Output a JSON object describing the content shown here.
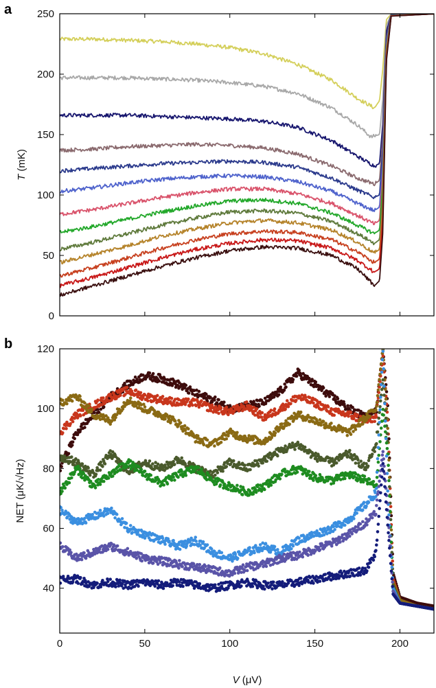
{
  "chart_data": [
    {
      "panel": "a",
      "type": "line",
      "xlabel": "",
      "ylabel_var": "T",
      "ylabel_unit": " (mK)",
      "xlim": [
        0,
        220
      ],
      "ylim": [
        0,
        250
      ],
      "xticks": [
        0,
        50,
        100,
        150,
        200
      ],
      "yticks": [
        0,
        50,
        100,
        150,
        200,
        250
      ],
      "xtick_labels": [
        "",
        "",
        "",
        "",
        ""
      ],
      "ytick_labels": [
        "0",
        "50",
        "100",
        "150",
        "200",
        "250"
      ],
      "grid": false,
      "series": [
        {
          "color": "#d4cf5a",
          "x": [
            0,
            20,
            40,
            60,
            80,
            100,
            120,
            140,
            160,
            175,
            185,
            188,
            190,
            192,
            195
          ],
          "y": [
            229,
            229,
            228,
            227,
            225,
            222,
            217,
            208,
            195,
            180,
            172,
            178,
            205,
            245,
            250
          ]
        },
        {
          "color": "#a8a8a8",
          "x": [
            0,
            20,
            40,
            60,
            80,
            100,
            120,
            140,
            160,
            175,
            183,
            188,
            190,
            192,
            195
          ],
          "y": [
            197,
            197,
            197,
            196,
            195,
            193,
            190,
            184,
            172,
            158,
            148,
            150,
            180,
            240,
            250
          ]
        },
        {
          "color": "#17166e",
          "x": [
            0,
            20,
            40,
            60,
            80,
            100,
            120,
            140,
            160,
            175,
            185,
            188,
            190,
            192,
            195
          ],
          "y": [
            166,
            166,
            166,
            165,
            164,
            163,
            161,
            156,
            145,
            132,
            124,
            126,
            160,
            235,
            250
          ]
        },
        {
          "color": "#8a6a6e",
          "x": [
            0,
            20,
            40,
            60,
            80,
            100,
            120,
            140,
            160,
            175,
            185,
            188,
            190,
            192,
            195
          ],
          "y": [
            137,
            138,
            140,
            141,
            142,
            141,
            139,
            134,
            124,
            114,
            109,
            112,
            150,
            230,
            250
          ]
        },
        {
          "color": "#2b3a8c",
          "x": [
            0,
            20,
            40,
            60,
            80,
            100,
            120,
            140,
            160,
            175,
            185,
            188,
            190,
            192,
            195
          ],
          "y": [
            120,
            122,
            124,
            126,
            127,
            128,
            127,
            123,
            114,
            104,
            98,
            100,
            140,
            228,
            250
          ]
        },
        {
          "color": "#4f63cc",
          "x": [
            0,
            20,
            40,
            60,
            80,
            100,
            120,
            140,
            160,
            175,
            185,
            188,
            190,
            192,
            195
          ],
          "y": [
            103,
            106,
            110,
            113,
            115,
            116,
            115,
            111,
            103,
            93,
            87,
            90,
            130,
            225,
            250
          ]
        },
        {
          "color": "#d9536b",
          "x": [
            0,
            20,
            40,
            60,
            80,
            100,
            120,
            140,
            160,
            175,
            185,
            188,
            190,
            192,
            195
          ],
          "y": [
            84,
            88,
            93,
            98,
            102,
            105,
            105,
            101,
            93,
            83,
            76,
            79,
            120,
            222,
            250
          ]
        },
        {
          "color": "#22a82a",
          "x": [
            0,
            20,
            40,
            60,
            80,
            100,
            120,
            140,
            160,
            175,
            185,
            188,
            190,
            192,
            195
          ],
          "y": [
            69,
            74,
            80,
            86,
            91,
            95,
            96,
            93,
            85,
            75,
            68,
            71,
            110,
            220,
            250
          ]
        },
        {
          "color": "#5f7a3c",
          "x": [
            0,
            20,
            40,
            60,
            80,
            100,
            120,
            140,
            160,
            175,
            185,
            188,
            190,
            192,
            195
          ],
          "y": [
            55,
            61,
            68,
            75,
            81,
            86,
            87,
            85,
            78,
            68,
            60,
            63,
            100,
            218,
            250
          ]
        },
        {
          "color": "#b5832a",
          "x": [
            0,
            20,
            40,
            60,
            80,
            100,
            120,
            140,
            160,
            175,
            185,
            188,
            190,
            192,
            195
          ],
          "y": [
            44,
            51,
            58,
            66,
            72,
            77,
            79,
            77,
            71,
            61,
            52,
            55,
            92,
            216,
            250
          ]
        },
        {
          "color": "#c7401f",
          "x": [
            0,
            20,
            40,
            60,
            80,
            100,
            120,
            140,
            160,
            175,
            185,
            188,
            190,
            192,
            195
          ],
          "y": [
            33,
            40,
            48,
            56,
            63,
            68,
            70,
            69,
            63,
            53,
            44,
            47,
            85,
            214,
            250
          ]
        },
        {
          "color": "#c81818",
          "x": [
            0,
            20,
            40,
            60,
            80,
            100,
            120,
            140,
            160,
            175,
            185,
            188,
            190,
            192,
            195
          ],
          "y": [
            25,
            32,
            40,
            48,
            55,
            60,
            63,
            62,
            56,
            46,
            36,
            39,
            78,
            212,
            250
          ]
        },
        {
          "color": "#3a0f0f",
          "x": [
            0,
            20,
            40,
            60,
            80,
            100,
            120,
            140,
            160,
            175,
            185,
            188,
            190,
            192,
            195
          ],
          "y": [
            17,
            25,
            33,
            41,
            48,
            54,
            57,
            56,
            50,
            39,
            25,
            29,
            70,
            210,
            250
          ]
        }
      ]
    },
    {
      "panel": "b",
      "type": "scatter",
      "xlabel_var": "V",
      "xlabel_unit": " (μV)",
      "ylabel": "NET (μK/√Hz)",
      "xlim": [
        0,
        220
      ],
      "ylim": [
        25,
        120
      ],
      "xticks": [
        0,
        50,
        100,
        150,
        200
      ],
      "yticks": [
        40,
        60,
        80,
        100,
        120
      ],
      "xtick_labels": [
        "0",
        "50",
        "100",
        "150",
        "200"
      ],
      "ytick_labels": [
        "40",
        "60",
        "80",
        "100",
        "120"
      ],
      "grid": false,
      "series": [
        {
          "color": "#3d0c0c",
          "x": [
            0,
            10,
            20,
            30,
            40,
            50,
            60,
            70,
            80,
            90,
            100,
            110,
            120,
            130,
            140,
            150,
            160,
            170,
            180,
            186,
            190,
            193,
            196,
            200,
            210,
            220
          ],
          "y": [
            80,
            92,
            98,
            104,
            108,
            111,
            110,
            108,
            105,
            103,
            100,
            101,
            102,
            106,
            112,
            108,
            104,
            100,
            97,
            99,
            120,
            100,
            45,
            37,
            35,
            34
          ]
        },
        {
          "color": "#c8361c",
          "x": [
            0,
            10,
            20,
            30,
            40,
            50,
            60,
            70,
            80,
            90,
            100,
            110,
            120,
            130,
            140,
            150,
            160,
            170,
            180,
            186,
            190,
            193,
            196,
            200,
            210,
            220
          ],
          "y": [
            92,
            98,
            101,
            104,
            106,
            104,
            103,
            102,
            102,
            100,
            99,
            101,
            97,
            100,
            104,
            102,
            99,
            98,
            96,
            97,
            118,
            95,
            43,
            36,
            34,
            33
          ]
        },
        {
          "color": "#8a6a14",
          "x": [
            0,
            10,
            20,
            30,
            40,
            50,
            60,
            70,
            80,
            90,
            100,
            110,
            120,
            130,
            140,
            150,
            160,
            170,
            180,
            186,
            190,
            193,
            196,
            200,
            210,
            220
          ],
          "y": [
            102,
            104,
            98,
            96,
            103,
            100,
            98,
            95,
            90,
            88,
            92,
            90,
            89,
            94,
            98,
            96,
            94,
            92,
            97,
            100,
            120,
            92,
            42,
            36,
            34,
            33
          ]
        },
        {
          "color": "#4a5a2c",
          "x": [
            0,
            10,
            20,
            30,
            40,
            50,
            60,
            70,
            80,
            90,
            100,
            110,
            120,
            130,
            140,
            150,
            160,
            170,
            180,
            186,
            190,
            193,
            196,
            200,
            210,
            220
          ],
          "y": [
            84,
            82,
            78,
            85,
            79,
            82,
            80,
            83,
            80,
            78,
            82,
            80,
            83,
            86,
            88,
            84,
            82,
            85,
            80,
            88,
            110,
            88,
            41,
            35,
            34,
            33
          ]
        },
        {
          "color": "#1e8c20",
          "x": [
            0,
            10,
            20,
            30,
            40,
            50,
            60,
            70,
            80,
            90,
            100,
            110,
            120,
            130,
            140,
            150,
            160,
            170,
            180,
            186,
            190,
            193,
            196,
            200,
            210,
            220
          ],
          "y": [
            72,
            80,
            74,
            78,
            82,
            78,
            75,
            78,
            80,
            76,
            74,
            72,
            74,
            78,
            80,
            77,
            76,
            78,
            76,
            74,
            100,
            84,
            40,
            35,
            34,
            33
          ]
        },
        {
          "color": "#3b8fe0",
          "x": [
            0,
            10,
            20,
            30,
            40,
            50,
            60,
            70,
            80,
            90,
            100,
            110,
            120,
            130,
            140,
            150,
            160,
            170,
            180,
            186,
            190,
            193,
            196,
            200,
            210,
            220
          ],
          "y": [
            66,
            62,
            64,
            66,
            60,
            58,
            56,
            54,
            56,
            52,
            50,
            52,
            54,
            52,
            56,
            58,
            60,
            63,
            68,
            72,
            120,
            70,
            40,
            35,
            34,
            33
          ]
        },
        {
          "color": "#5a54a8",
          "x": [
            0,
            10,
            20,
            30,
            40,
            50,
            60,
            70,
            80,
            90,
            100,
            110,
            120,
            130,
            140,
            150,
            160,
            170,
            180,
            186,
            190,
            193,
            196,
            200,
            210,
            220
          ],
          "y": [
            54,
            50,
            52,
            54,
            52,
            50,
            49,
            48,
            47,
            46,
            45,
            47,
            48,
            50,
            51,
            53,
            55,
            58,
            62,
            66,
            86,
            65,
            39,
            35,
            34,
            33
          ]
        },
        {
          "color": "#141c7a",
          "x": [
            0,
            10,
            20,
            30,
            40,
            50,
            60,
            70,
            80,
            90,
            100,
            110,
            120,
            130,
            140,
            150,
            160,
            170,
            180,
            186,
            190,
            193,
            196,
            200,
            210,
            220
          ],
          "y": [
            43,
            43,
            41,
            42,
            41,
            42,
            41,
            42,
            41,
            40,
            41,
            42,
            41,
            41,
            42,
            43,
            44,
            45,
            46,
            52,
            82,
            60,
            38,
            35,
            34,
            33
          ]
        }
      ]
    }
  ]
}
